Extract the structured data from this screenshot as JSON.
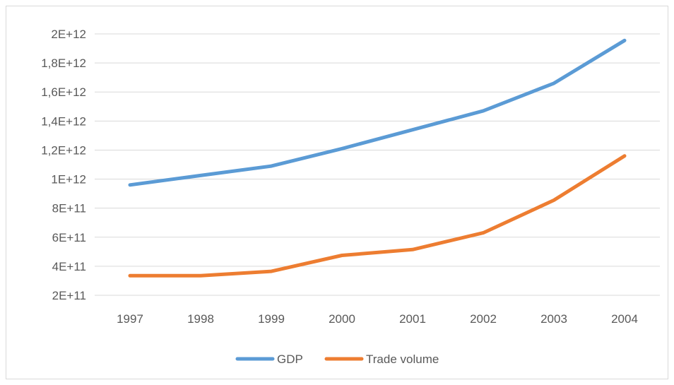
{
  "chart_data": {
    "type": "line",
    "title": "",
    "xlabel": "",
    "ylabel": "",
    "categories": [
      "1997",
      "1998",
      "1999",
      "2000",
      "2001",
      "2002",
      "2003",
      "2004"
    ],
    "y_ticks": [
      {
        "value": 200000000000,
        "label": "2E+11"
      },
      {
        "value": 400000000000,
        "label": "4E+11"
      },
      {
        "value": 600000000000,
        "label": "6E+11"
      },
      {
        "value": 800000000000,
        "label": "8E+11"
      },
      {
        "value": 1000000000000,
        "label": "1E+12"
      },
      {
        "value": 1200000000000,
        "label": "1,2E+12"
      },
      {
        "value": 1400000000000,
        "label": "1,4E+12"
      },
      {
        "value": 1600000000000,
        "label": "1,6E+12"
      },
      {
        "value": 1800000000000,
        "label": "1,8E+12"
      },
      {
        "value": 2000000000000,
        "label": "2E+12"
      }
    ],
    "ylim": [
      200000000000,
      2000000000000
    ],
    "grid": true,
    "legend_position": "bottom",
    "series": [
      {
        "name": "GDP",
        "color": "#5b9bd5",
        "values": [
          960000000000,
          1025000000000,
          1090000000000,
          1210000000000,
          1340000000000,
          1470000000000,
          1660000000000,
          1955000000000
        ]
      },
      {
        "name": "Trade volume",
        "color": "#ed7d31",
        "values": [
          335000000000,
          335000000000,
          365000000000,
          475000000000,
          515000000000,
          630000000000,
          855000000000,
          1160000000000
        ]
      }
    ]
  }
}
